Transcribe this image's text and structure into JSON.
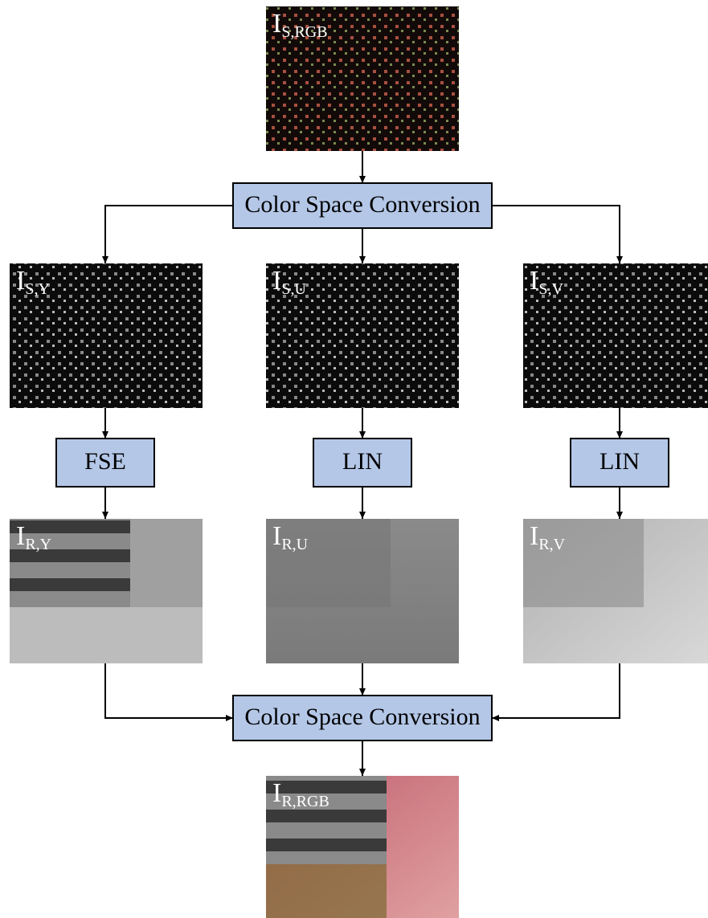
{
  "images": [
    {
      "main": "I",
      "sub": "S,RGB"
    },
    {
      "main": "I",
      "sub": "S,Y"
    },
    {
      "main": "I",
      "sub": "S,U"
    },
    {
      "main": "I",
      "sub": "S,V"
    },
    {
      "main": "I",
      "sub": "R,Y"
    },
    {
      "main": "I",
      "sub": "R,U"
    },
    {
      "main": "I",
      "sub": "R,V"
    },
    {
      "main": "I",
      "sub": "R,RGB"
    }
  ],
  "boxes": [
    {
      "label": "Color Space Conversion"
    },
    {
      "label": "FSE"
    },
    {
      "label": "LIN"
    },
    {
      "label": "LIN"
    },
    {
      "label": "Color Space Conversion"
    }
  ]
}
